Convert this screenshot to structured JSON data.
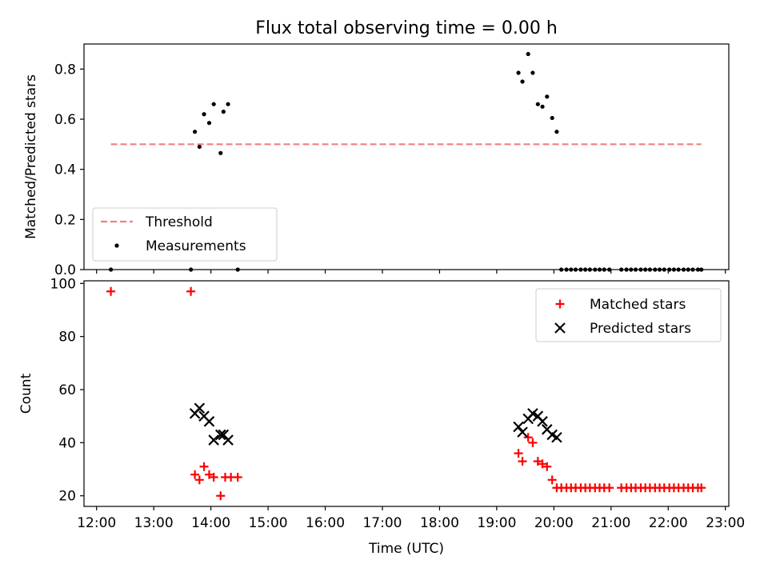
{
  "chart_data": [
    {
      "type": "scatter",
      "title": "Flux total observing time = 0.00 h",
      "xlabel": "",
      "ylabel": "Matched/Predicted stars",
      "xlim": [
        11.78,
        23.06
      ],
      "ylim": [
        0.0,
        0.9
      ],
      "yticks": [
        "0.0",
        "0.2",
        "0.4",
        "0.6",
        "0.8"
      ],
      "legend": {
        "placement": "lower-left"
      },
      "threshold": {
        "name": "Threshold",
        "value": 0.5,
        "x_range": [
          12.25,
          22.58
        ],
        "color": "#f08080"
      },
      "series": [
        {
          "name": "Measurements",
          "marker": "dot",
          "color": "#000000",
          "points": [
            [
              12.25,
              0.0
            ],
            [
              13.65,
              0.0
            ],
            [
              14.47,
              0.0
            ],
            [
              13.72,
              0.55
            ],
            [
              13.8,
              0.49
            ],
            [
              13.88,
              0.62
            ],
            [
              13.97,
              0.585
            ],
            [
              14.05,
              0.66
            ],
            [
              14.17,
              0.465
            ],
            [
              14.22,
              0.63
            ],
            [
              14.3,
              0.66
            ],
            [
              19.38,
              0.785
            ],
            [
              19.45,
              0.75
            ],
            [
              19.55,
              0.86
            ],
            [
              19.63,
              0.785
            ],
            [
              19.72,
              0.66
            ],
            [
              19.8,
              0.65
            ],
            [
              19.88,
              0.69
            ],
            [
              19.97,
              0.605
            ],
            [
              20.05,
              0.55
            ],
            [
              20.13,
              0.0
            ],
            [
              20.22,
              0.0
            ],
            [
              20.3,
              0.0
            ],
            [
              20.38,
              0.0
            ],
            [
              20.47,
              0.0
            ],
            [
              20.55,
              0.0
            ],
            [
              20.63,
              0.0
            ],
            [
              20.72,
              0.0
            ],
            [
              20.8,
              0.0
            ],
            [
              20.88,
              0.0
            ],
            [
              20.97,
              0.0
            ],
            [
              21.18,
              0.0
            ],
            [
              21.27,
              0.0
            ],
            [
              21.35,
              0.0
            ],
            [
              21.43,
              0.0
            ],
            [
              21.52,
              0.0
            ],
            [
              21.6,
              0.0
            ],
            [
              21.68,
              0.0
            ],
            [
              21.77,
              0.0
            ],
            [
              21.85,
              0.0
            ],
            [
              21.93,
              0.0
            ],
            [
              22.02,
              0.0
            ],
            [
              22.1,
              0.0
            ],
            [
              22.18,
              0.0
            ],
            [
              22.27,
              0.0
            ],
            [
              22.35,
              0.0
            ],
            [
              22.43,
              0.0
            ],
            [
              22.52,
              0.0
            ],
            [
              22.58,
              0.0
            ]
          ]
        }
      ]
    },
    {
      "type": "scatter",
      "title": "",
      "xlabel": "Time (UTC)",
      "ylabel": "Count",
      "xlim": [
        11.78,
        23.06
      ],
      "ylim": [
        16,
        101
      ],
      "xticks": [
        {
          "v": 12,
          "label": "12:00"
        },
        {
          "v": 13,
          "label": "13:00"
        },
        {
          "v": 14,
          "label": "14:00"
        },
        {
          "v": 15,
          "label": "15:00"
        },
        {
          "v": 16,
          "label": "16:00"
        },
        {
          "v": 17,
          "label": "17:00"
        },
        {
          "v": 18,
          "label": "18:00"
        },
        {
          "v": 19,
          "label": "19:00"
        },
        {
          "v": 20,
          "label": "20:00"
        },
        {
          "v": 21,
          "label": "21:00"
        },
        {
          "v": 22,
          "label": "22:00"
        },
        {
          "v": 23,
          "label": "23:00"
        }
      ],
      "yticks": [
        "20",
        "40",
        "60",
        "80",
        "100"
      ],
      "legend": {
        "placement": "upper-right"
      },
      "series": [
        {
          "name": "Matched stars",
          "marker": "plus",
          "color": "#ff0000",
          "points": [
            [
              12.25,
              97
            ],
            [
              13.65,
              97
            ],
            [
              13.72,
              28
            ],
            [
              13.8,
              26
            ],
            [
              13.88,
              31
            ],
            [
              13.97,
              28
            ],
            [
              14.05,
              27
            ],
            [
              14.17,
              20
            ],
            [
              14.25,
              27
            ],
            [
              14.35,
              27
            ],
            [
              14.47,
              27
            ],
            [
              19.38,
              36
            ],
            [
              19.45,
              33
            ],
            [
              19.55,
              42
            ],
            [
              19.63,
              40
            ],
            [
              19.72,
              33
            ],
            [
              19.8,
              32
            ],
            [
              19.88,
              31
            ],
            [
              19.97,
              26
            ],
            [
              20.05,
              23
            ],
            [
              20.13,
              23
            ],
            [
              20.22,
              23
            ],
            [
              20.3,
              23
            ],
            [
              20.38,
              23
            ],
            [
              20.47,
              23
            ],
            [
              20.55,
              23
            ],
            [
              20.63,
              23
            ],
            [
              20.72,
              23
            ],
            [
              20.8,
              23
            ],
            [
              20.88,
              23
            ],
            [
              20.97,
              23
            ],
            [
              21.18,
              23
            ],
            [
              21.27,
              23
            ],
            [
              21.35,
              23
            ],
            [
              21.43,
              23
            ],
            [
              21.52,
              23
            ],
            [
              21.6,
              23
            ],
            [
              21.68,
              23
            ],
            [
              21.77,
              23
            ],
            [
              21.85,
              23
            ],
            [
              21.93,
              23
            ],
            [
              22.02,
              23
            ],
            [
              22.1,
              23
            ],
            [
              22.18,
              23
            ],
            [
              22.27,
              23
            ],
            [
              22.35,
              23
            ],
            [
              22.43,
              23
            ],
            [
              22.52,
              23
            ],
            [
              22.58,
              23
            ]
          ]
        },
        {
          "name": "Predicted stars",
          "marker": "x",
          "color": "#000000",
          "points": [
            [
              13.72,
              51
            ],
            [
              13.8,
              53
            ],
            [
              13.88,
              50
            ],
            [
              13.97,
              48
            ],
            [
              14.05,
              41
            ],
            [
              14.17,
              43
            ],
            [
              14.22,
              43
            ],
            [
              14.3,
              41
            ],
            [
              19.38,
              46
            ],
            [
              19.45,
              44
            ],
            [
              19.55,
              49
            ],
            [
              19.63,
              51
            ],
            [
              19.72,
              50
            ],
            [
              19.8,
              48
            ],
            [
              19.88,
              45
            ],
            [
              19.97,
              43
            ],
            [
              20.05,
              42
            ]
          ]
        }
      ]
    }
  ]
}
